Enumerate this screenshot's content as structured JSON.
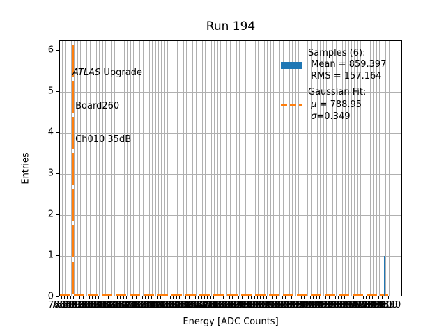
{
  "title": "Run 194",
  "axes": {
    "xlabel": "Energy [ADC Counts]",
    "ylabel": "Entries",
    "y_tick_values": [
      0,
      1,
      2,
      3,
      4,
      5,
      6
    ],
    "x_tick_first": 780.0,
    "x_tick_step": 2.0,
    "x_tick_count": 106,
    "x_tick_decimals": 1
  },
  "annotation": {
    "experiment": "ATLAS",
    "experiment_suffix": " Upgrade",
    "board": " Board260",
    "channel": " Ch010 35dB"
  },
  "legend": {
    "samples_header": "Samples (6):",
    "mean_label": " Mean = 859.397",
    "rms_label": " RMS = 157.164",
    "fit_header": "Gaussian Fit:",
    "mu_symbol": " μ",
    "mu_rest": " = 788.95",
    "sigma_symbol": " σ",
    "sigma_rest": "=0.349"
  },
  "colors": {
    "histogram": "#1f77b4",
    "fit": "#ff7f0e",
    "grid": "#b0b0b0",
    "background": "#ffffff"
  },
  "chart_data": {
    "type": "bar",
    "title": "Run 194",
    "xlabel": "Energy [ADC Counts]",
    "ylabel": "Entries",
    "ylim": [
      0,
      6.24
    ],
    "x_range_approx": [
      780,
      990
    ],
    "grid": true,
    "legend_position": "upper right",
    "series": [
      {
        "name": "Samples (6)",
        "type": "histogram",
        "color": "#1f77b4",
        "visible_bars": [
          {
            "x": 988,
            "height": 1
          }
        ],
        "stats": {
          "entries": 6,
          "mean": 859.397,
          "rms": 157.164
        }
      },
      {
        "name": "Gaussian Fit",
        "type": "line",
        "style": "dashed",
        "color": "#ff7f0e",
        "peak": {
          "x": 788.95,
          "height": 6.15
        },
        "params": {
          "mu": 788.95,
          "sigma": 0.349
        },
        "baseline": 0
      }
    ]
  }
}
